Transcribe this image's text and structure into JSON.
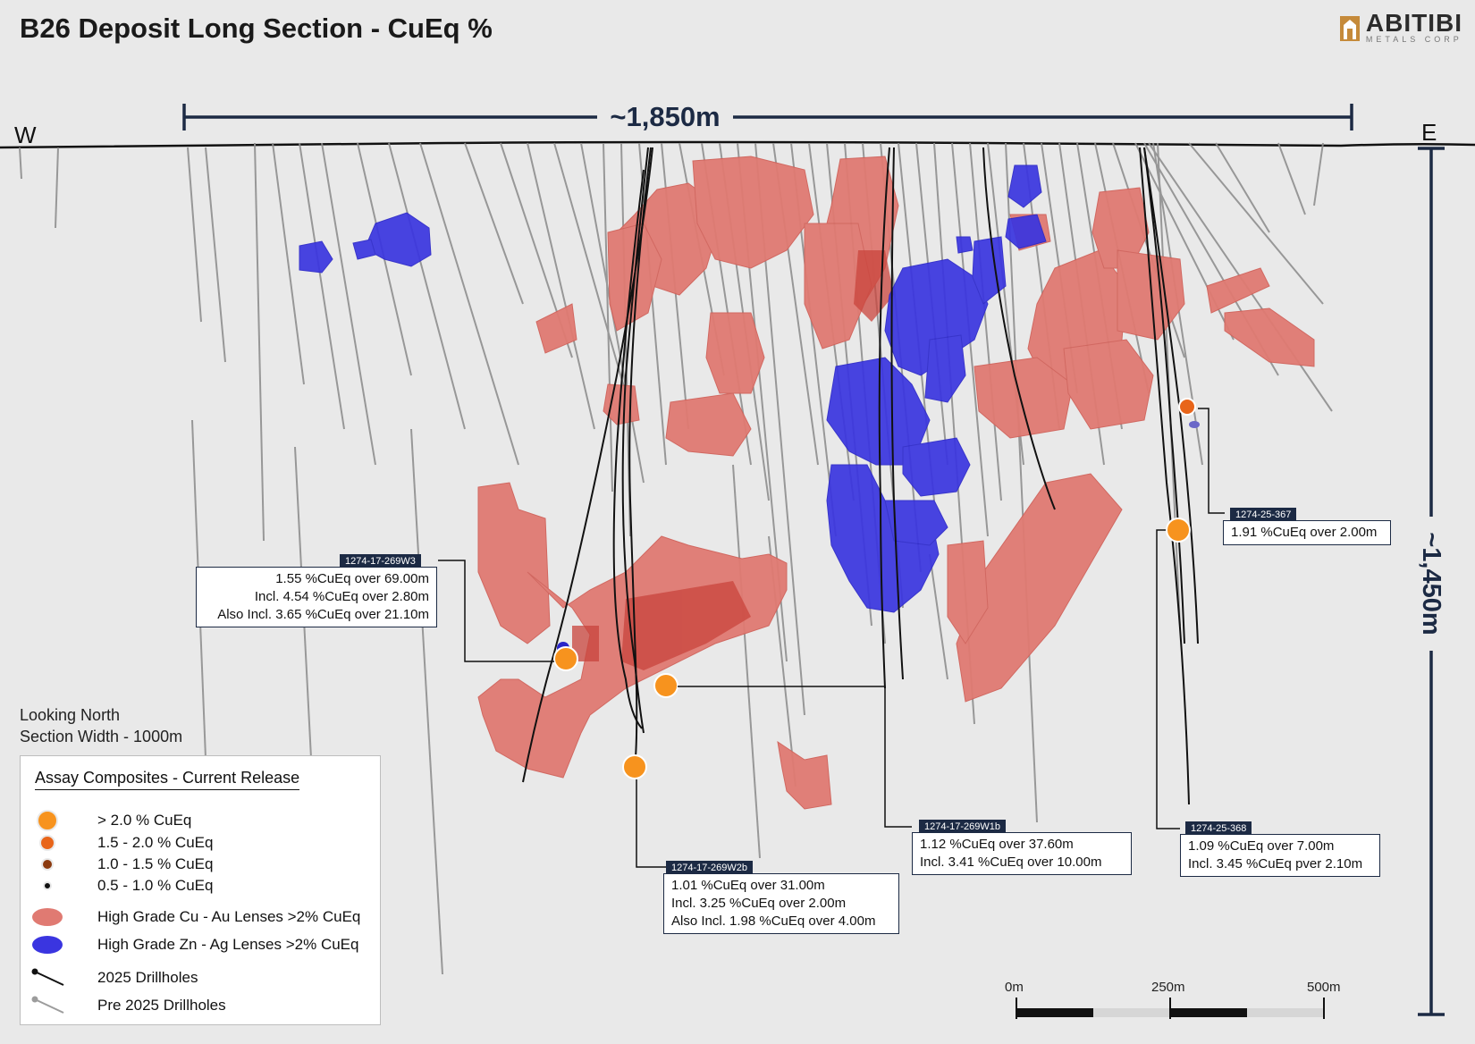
{
  "title": "B26 Deposit Long Section - CuEq %",
  "logo": {
    "name": "ABITIBI",
    "sub": "METALS CORP"
  },
  "compass": {
    "west": "W",
    "east": "E"
  },
  "dimensions": {
    "width": "~1,850m",
    "depth": "~1,450m"
  },
  "view": {
    "line1": "Looking North",
    "line2": "Section Width - 1000m"
  },
  "colors": {
    "cu_lens": "#e07a72",
    "cu_lens_dark": "#c9443c",
    "zn_lens": "#3a35e0",
    "orange": "#f7931e",
    "orange_dark": "#e8651a",
    "brown": "#8b3a0f",
    "navy": "#1c2a44"
  },
  "callouts": [
    {
      "hole": "1274-17-269W3",
      "lines": [
        "1.55 %CuEq over 69.00m",
        "Incl. 4.54 %CuEq over 2.80m",
        "Also Incl. 3.65 %CuEq over 21.10m"
      ]
    },
    {
      "hole": "1274-17-269W2b",
      "lines": [
        "1.01 %CuEq over 31.00m",
        "Incl. 3.25 %CuEq over 2.00m",
        "Also Incl. 1.98 %CuEq over 4.00m"
      ]
    },
    {
      "hole": "1274-17-269W1b",
      "lines": [
        "1.12 %CuEq over 37.60m",
        "Incl. 3.41 %CuEq over 10.00m"
      ]
    },
    {
      "hole": "1274-25-368",
      "lines": [
        "1.09 %CuEq over 7.00m",
        "Incl. 3.45 %CuEq pver 2.10m"
      ]
    },
    {
      "hole": "1274-25-367",
      "lines": [
        "1.91 %CuEq over 2.00m"
      ]
    }
  ],
  "legend": {
    "title": "Assay Composites - Current Release",
    "items": [
      {
        "label": "> 2.0 % CuEq",
        "symbol": "orange-dot-icon"
      },
      {
        "label": "1.5 - 2.0 % CuEq",
        "symbol": "dark-orange-dot-icon"
      },
      {
        "label": "1.0 - 1.5 % CuEq",
        "symbol": "brown-dot-icon"
      },
      {
        "label": "0.5 - 1.0 % CuEq",
        "symbol": "black-dot-icon"
      },
      {
        "label": "High Grade Cu - Au Lenses >2% CuEq",
        "symbol": "red-lens-icon"
      },
      {
        "label": "High Grade Zn - Ag Lenses >2% CuEq",
        "symbol": "blue-lens-icon"
      },
      {
        "label": "2025 Drillholes",
        "symbol": "black-drillhole-icon"
      },
      {
        "label": "Pre 2025 Drillholes",
        "symbol": "grey-drillhole-icon"
      }
    ]
  },
  "scale": {
    "labels": [
      "0m",
      "250m",
      "500m"
    ]
  }
}
